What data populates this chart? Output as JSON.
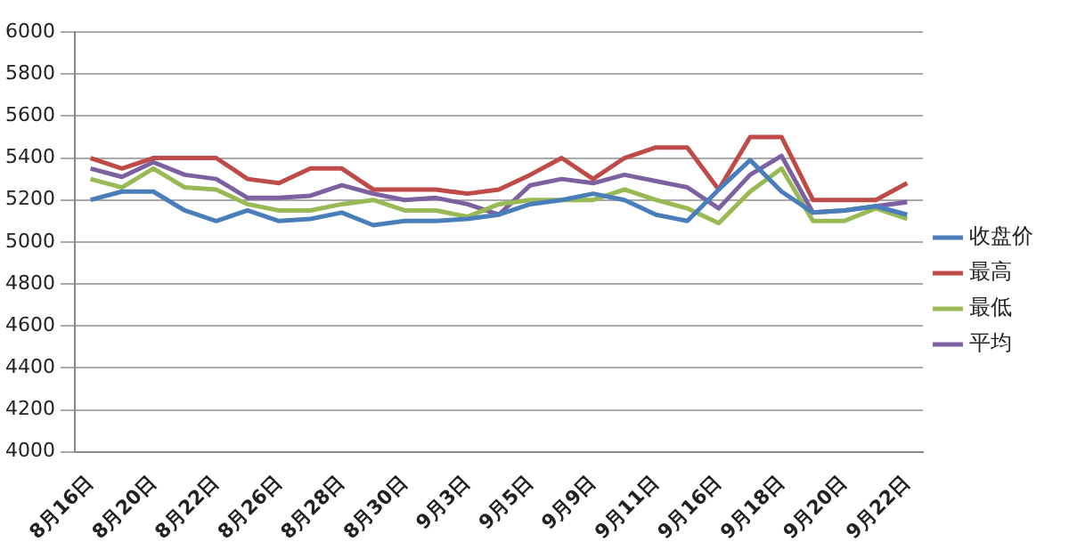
{
  "chart_data": {
    "type": "line",
    "categories": [
      "8月16日",
      null,
      "8月20日",
      null,
      "8月22日",
      null,
      "8月26日",
      null,
      "8月28日",
      null,
      "8月30日",
      null,
      "9月3日",
      null,
      "9月5日",
      null,
      "9月9日",
      null,
      "9月11日",
      null,
      "9月16日",
      null,
      "9月18日",
      null,
      "9月20日",
      null,
      "9月22日"
    ],
    "series": [
      {
        "name": "收盘价",
        "color": "#4a7ebb",
        "values": [
          5200,
          5240,
          5240,
          5150,
          5100,
          5150,
          5100,
          5110,
          5140,
          5080,
          5100,
          5100,
          5110,
          5130,
          5180,
          5200,
          5230,
          5200,
          5130,
          5100,
          5250,
          5390,
          5240,
          5140,
          5150,
          5170,
          5130
        ]
      },
      {
        "name": "最高",
        "color": "#be4b48",
        "values": [
          5400,
          5350,
          5400,
          5400,
          5400,
          5300,
          5280,
          5350,
          5350,
          5250,
          5250,
          5250,
          5230,
          5250,
          5320,
          5400,
          5300,
          5400,
          5450,
          5450,
          5250,
          5500,
          5500,
          5200,
          5200,
          5200,
          5280
        ]
      },
      {
        "name": "最低",
        "color": "#98b954",
        "values": [
          5300,
          5260,
          5350,
          5260,
          5250,
          5180,
          5150,
          5150,
          5180,
          5200,
          5150,
          5150,
          5120,
          5180,
          5200,
          5200,
          5200,
          5250,
          5200,
          5160,
          5090,
          5240,
          5350,
          5100,
          5100,
          5160,
          5110
        ]
      },
      {
        "name": "平均",
        "color": "#7d60a0",
        "values": [
          5350,
          5310,
          5380,
          5320,
          5300,
          5210,
          5210,
          5220,
          5270,
          5230,
          5200,
          5210,
          5180,
          5130,
          5270,
          5300,
          5280,
          5320,
          5290,
          5260,
          5160,
          5320,
          5410,
          5140,
          5150,
          5170,
          5190
        ]
      }
    ],
    "ylim": [
      4000,
      6000
    ],
    "yticks": [
      4000,
      4200,
      4400,
      4600,
      4800,
      5000,
      5200,
      5400,
      5600,
      5800,
      6000
    ],
    "grid": "y",
    "legend": "right",
    "marker": "none",
    "line_style": "solid"
  }
}
